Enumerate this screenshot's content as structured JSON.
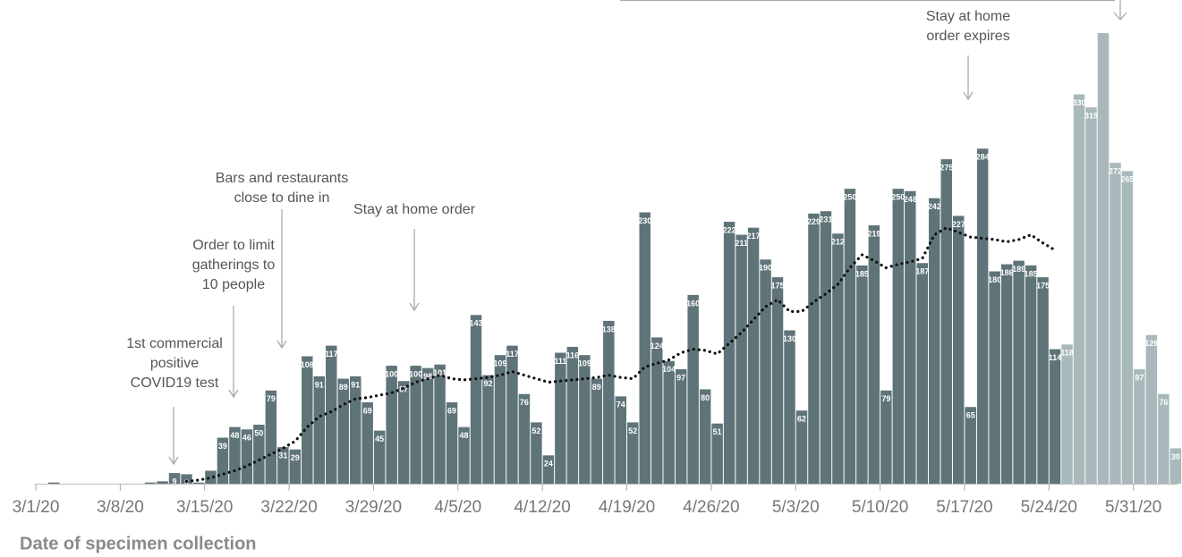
{
  "chart_data": {
    "type": "bar",
    "x_label": "Date of specimen collection",
    "categories": [
      "3/1/20",
      null,
      null,
      null,
      null,
      null,
      null,
      "3/8/20",
      null,
      null,
      null,
      null,
      null,
      null,
      "3/15/20",
      null,
      null,
      null,
      null,
      null,
      null,
      "3/22/20",
      null,
      null,
      null,
      null,
      null,
      null,
      "3/29/20",
      null,
      null,
      null,
      null,
      null,
      null,
      "4/5/20",
      null,
      null,
      null,
      null,
      null,
      null,
      "4/12/20",
      null,
      null,
      null,
      null,
      null,
      null,
      "4/19/20",
      null,
      null,
      null,
      null,
      null,
      null,
      "4/26/20",
      null,
      null,
      null,
      null,
      null,
      null,
      "5/3/20",
      null,
      null,
      null,
      null,
      null,
      null,
      "5/10/20",
      null,
      null,
      null,
      null,
      null,
      null,
      "5/17/20",
      null,
      null,
      null,
      null,
      null,
      null,
      "5/24/20",
      null,
      null,
      null,
      null,
      null,
      null,
      "5/31/20",
      null,
      null,
      null
    ],
    "ylim": [
      0,
      410
    ],
    "series": [
      {
        "color": "#5f7479",
        "values": [
          0,
          1,
          0,
          0,
          0,
          0,
          0,
          0,
          0,
          1,
          2,
          9,
          8,
          1,
          11,
          39,
          48,
          46,
          50,
          79,
          31,
          29,
          108,
          91,
          117,
          89,
          91,
          69,
          45,
          100,
          87,
          100,
          98,
          101,
          69,
          48,
          143,
          92,
          109,
          117,
          76,
          52,
          24,
          111,
          116,
          109,
          89,
          138,
          74,
          52,
          230,
          124,
          104,
          97,
          160,
          80,
          51,
          222,
          211,
          217,
          190,
          175,
          130,
          62,
          229,
          231,
          212,
          250,
          185,
          219,
          79,
          250,
          248,
          187,
          242,
          275,
          227,
          65,
          284,
          180,
          186,
          189,
          185,
          175,
          114,
          null,
          null,
          null,
          null,
          null,
          null,
          null,
          null,
          null,
          null
        ],
        "value_labels": [
          null,
          null,
          null,
          null,
          null,
          null,
          null,
          null,
          null,
          null,
          null,
          "9",
          "8",
          null,
          null,
          "39",
          "48",
          "46",
          "50",
          "79",
          "31",
          "29",
          "108",
          "91",
          "117",
          "89",
          "91",
          "69",
          "45",
          "100",
          "87",
          "100",
          "98",
          "101",
          "69",
          "48",
          "143",
          "92",
          "109",
          "117",
          "76",
          "52",
          "24",
          "111",
          "116",
          "109",
          "89",
          "138",
          "74",
          "52",
          "230",
          "124",
          "104",
          "97",
          "160",
          "80",
          "51",
          "222",
          "211",
          "217",
          "190",
          "175",
          "130",
          "62",
          "229",
          "231",
          "212",
          "250",
          "185",
          "219",
          "79",
          "250",
          "248",
          "187",
          "242",
          "275",
          "227",
          "65",
          "284",
          "180",
          "186",
          "189",
          "185",
          "175",
          "114",
          null,
          null,
          null,
          null,
          null,
          null,
          null,
          null,
          null,
          null
        ]
      },
      {
        "color": "#a9b8bb",
        "values": [
          null,
          null,
          null,
          null,
          null,
          null,
          null,
          null,
          null,
          null,
          null,
          null,
          null,
          null,
          null,
          null,
          null,
          null,
          null,
          null,
          null,
          null,
          null,
          null,
          null,
          null,
          null,
          null,
          null,
          null,
          null,
          null,
          null,
          null,
          null,
          null,
          null,
          null,
          null,
          null,
          null,
          null,
          null,
          null,
          null,
          null,
          null,
          null,
          null,
          null,
          null,
          null,
          null,
          null,
          null,
          null,
          null,
          null,
          null,
          null,
          null,
          null,
          null,
          null,
          null,
          null,
          null,
          null,
          null,
          null,
          null,
          null,
          null,
          null,
          null,
          null,
          null,
          null,
          null,
          null,
          null,
          null,
          null,
          null,
          null,
          118,
          330,
          319,
          382,
          272,
          265,
          97,
          126,
          76,
          30
        ],
        "value_labels": [
          null,
          null,
          null,
          null,
          null,
          null,
          null,
          null,
          null,
          null,
          null,
          null,
          null,
          null,
          null,
          null,
          null,
          null,
          null,
          null,
          null,
          null,
          null,
          null,
          null,
          null,
          null,
          null,
          null,
          null,
          null,
          null,
          null,
          null,
          null,
          null,
          null,
          null,
          null,
          null,
          null,
          null,
          null,
          null,
          null,
          null,
          null,
          null,
          null,
          null,
          null,
          null,
          null,
          null,
          null,
          null,
          null,
          null,
          null,
          null,
          null,
          null,
          null,
          null,
          null,
          null,
          null,
          null,
          null,
          null,
          null,
          null,
          null,
          null,
          null,
          null,
          null,
          null,
          null,
          null,
          null,
          null,
          null,
          null,
          null,
          "118",
          "330",
          "319",
          null,
          "272",
          "265",
          "97",
          "126",
          "76",
          "30"
        ]
      },
      {
        "type": "line",
        "color": "#111111",
        "values": [
          null,
          null,
          null,
          null,
          null,
          null,
          null,
          null,
          null,
          null,
          null,
          null,
          2,
          3,
          5,
          8,
          11,
          15,
          20,
          25,
          30,
          36,
          48,
          57,
          61,
          67,
          72,
          73,
          75,
          77,
          81,
          86,
          89,
          92,
          89,
          88,
          89,
          90,
          92,
          95,
          92,
          89,
          86,
          87,
          88,
          89,
          90,
          92,
          90,
          89,
          99,
          102,
          105,
          111,
          114,
          113,
          110,
          119,
          128,
          139,
          150,
          156,
          146,
          146,
          154,
          161,
          169,
          183,
          194,
          189,
          183,
          186,
          188,
          191,
          211,
          217,
          213,
          209,
          208,
          207,
          205,
          207,
          211,
          204,
          198,
          null,
          null,
          null,
          null,
          null,
          null,
          null,
          null,
          null,
          null
        ]
      }
    ],
    "annotations": [
      {
        "text": [
          "1st commercial",
          "positive",
          "COVID19 test"
        ]
      },
      {
        "text": [
          "Order to limit",
          "gatherings to",
          "10 people"
        ]
      },
      {
        "text": [
          "Bars and restaurants",
          "close to dine in"
        ]
      },
      {
        "text": [
          "Stay at home order"
        ]
      },
      {
        "text": [
          "Stay at home",
          "order expires"
        ]
      }
    ]
  }
}
